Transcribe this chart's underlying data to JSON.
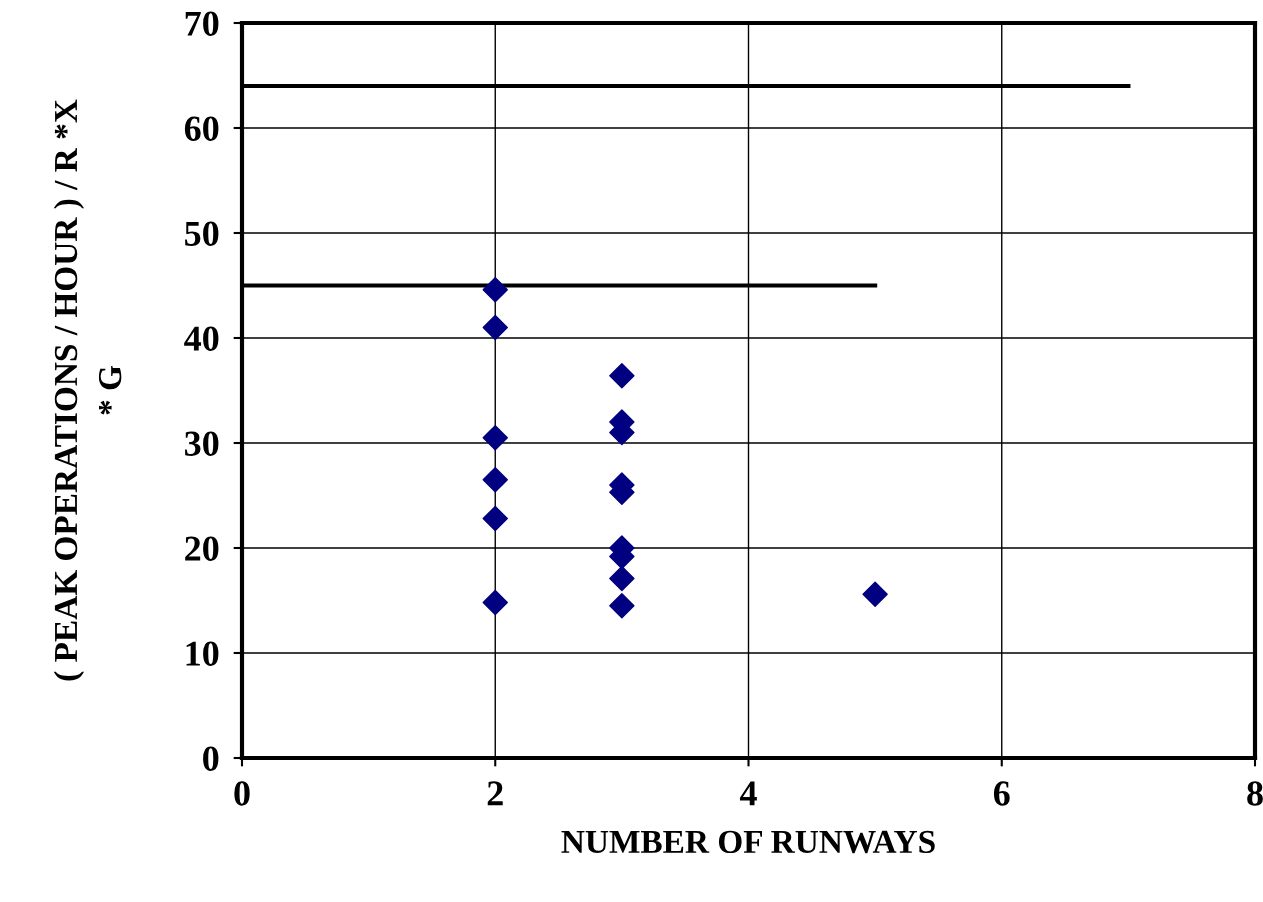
{
  "chart_data": {
    "type": "scatter",
    "xlabel": "NUMBER OF RUNWAYS",
    "ylabel": "( PEAK OPERATIONS / HOUR ) / R *X\n* G",
    "xlim": [
      0,
      8
    ],
    "xticks": [
      0,
      2,
      4,
      6,
      8
    ],
    "ylim": [
      0,
      70
    ],
    "yticks": [
      0,
      10,
      20,
      30,
      40,
      50,
      60,
      70
    ],
    "grid": true,
    "legend": false,
    "series": [
      {
        "marker": "diamond",
        "color": "#000080",
        "x": [
          2,
          2,
          2,
          2,
          2,
          2,
          3,
          3,
          3,
          3,
          3,
          3,
          3,
          3,
          3,
          5
        ],
        "values": [
          44.6,
          41.0,
          30.5,
          26.5,
          22.8,
          14.8,
          36.4,
          32.0,
          31.0,
          26.0,
          25.3,
          20.0,
          19.2,
          17.1,
          14.5,
          15.6
        ]
      },
      {
        "type": "line",
        "marker": "none",
        "line_style": "solid",
        "color": "#000000",
        "x": [
          0,
          7
        ],
        "values": [
          64,
          64
        ]
      },
      {
        "type": "line",
        "marker": "none",
        "line_style": "solid",
        "color": "#000000",
        "x": [
          0,
          1,
          3,
          5
        ],
        "values": [
          45,
          45,
          45,
          45
        ]
      }
    ]
  }
}
